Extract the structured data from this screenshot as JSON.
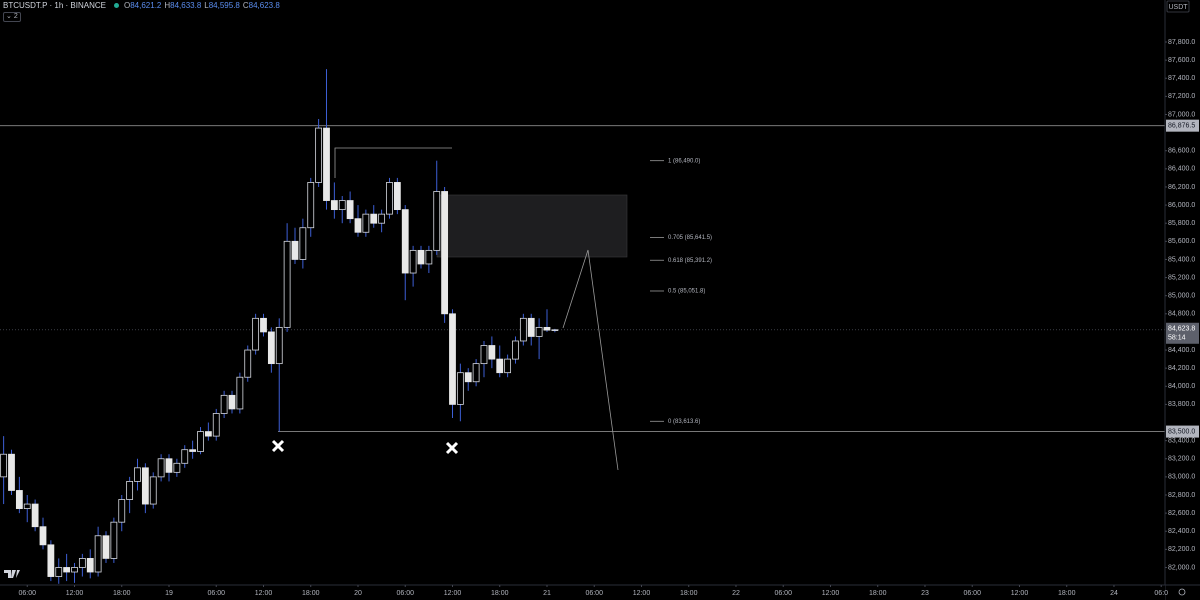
{
  "chart_data": {
    "type": "candlestick",
    "header": {
      "symbol": "BTCUSDT.P · 1h · BINANCE",
      "ohlc": [
        {
          "key": "O",
          "value": "84,621.2"
        },
        {
          "key": "H",
          "value": "84,633.8"
        },
        {
          "key": "L",
          "value": "84,595.8"
        },
        {
          "key": "C",
          "value": "84,623.8"
        }
      ],
      "badge": "2"
    },
    "currency": "USDT",
    "colors": {
      "up_fill": "#000000",
      "up_stroke": "#d6d9e0",
      "down_fill": "#e8e8e8",
      "wick": "#3d5fd6"
    },
    "x": [
      -21,
      -20,
      -19,
      -18,
      -17,
      -16,
      -15,
      -14,
      -13,
      -12,
      -11,
      -10,
      -9,
      -8,
      -7,
      -6,
      -5,
      -4,
      -3,
      -2,
      -1,
      0,
      1,
      2,
      3,
      4,
      5,
      6,
      7,
      8,
      9,
      10,
      11,
      12,
      13,
      14,
      15,
      16,
      17,
      18,
      19,
      20,
      21,
      22,
      23,
      24,
      25,
      26,
      27,
      28,
      29,
      30,
      31,
      32,
      33,
      34,
      35,
      36,
      37,
      38,
      39,
      40,
      41,
      42,
      43,
      44,
      45,
      46,
      47,
      48,
      49
    ],
    "open": [
      83000,
      83250,
      82850,
      82650,
      82700,
      82450,
      82250,
      81900,
      82000,
      81950,
      82000,
      82100,
      81950,
      82350,
      82100,
      82500,
      82750,
      82950,
      83100,
      82700,
      83000,
      83200,
      83050,
      83150,
      83300,
      83280,
      83500,
      83450,
      83700,
      83900,
      83750,
      84100,
      84400,
      84750,
      84600,
      84250,
      84650,
      85600,
      85400,
      85750,
      86250,
      86850,
      86050,
      85950,
      86050,
      85850,
      85700,
      85900,
      85800,
      85900,
      86250,
      85950,
      85250,
      85500,
      85350,
      85500,
      86150,
      84800,
      83800,
      84150,
      84050,
      84250,
      84450,
      84300,
      84150,
      84300,
      84500,
      84750,
      84550,
      84650,
      84621.2
    ],
    "high": [
      83450,
      83300,
      83000,
      82800,
      82750,
      82550,
      82300,
      82100,
      82150,
      82050,
      82150,
      82200,
      82450,
      82400,
      82550,
      82800,
      83000,
      83200,
      83150,
      83050,
      83250,
      83250,
      83200,
      83350,
      83400,
      83550,
      83600,
      83750,
      83950,
      83950,
      84150,
      84450,
      84800,
      84800,
      84650,
      84750,
      85800,
      85750,
      85850,
      86300,
      86950,
      87500,
      86250,
      86100,
      86150,
      86000,
      85950,
      86000,
      85950,
      86300,
      86300,
      86000,
      85550,
      85550,
      85550,
      86490,
      86200,
      84850,
      84250,
      84200,
      84300,
      84500,
      84550,
      84450,
      84350,
      84550,
      84800,
      84800,
      84750,
      84850,
      84633.8
    ],
    "low": [
      82700,
      82800,
      82600,
      82500,
      82400,
      82200,
      81850,
      81820,
      81850,
      81830,
      81900,
      81880,
      81900,
      82050,
      82050,
      82400,
      82600,
      82850,
      82600,
      82650,
      82950,
      82950,
      83000,
      83100,
      83200,
      83250,
      83400,
      83400,
      83650,
      83700,
      83700,
      84050,
      84350,
      84550,
      84150,
      83500,
      84600,
      85350,
      85300,
      85650,
      86200,
      85950,
      85850,
      85800,
      85800,
      85650,
      85650,
      85750,
      85700,
      85850,
      85900,
      84950,
      85100,
      85300,
      85250,
      85450,
      84700,
      83650,
      83613.6,
      83950,
      84000,
      84100,
      84200,
      84100,
      84100,
      84250,
      84450,
      84450,
      84300,
      84600,
      84595.8
    ],
    "close": [
      83250,
      82850,
      82650,
      82700,
      82450,
      82250,
      81900,
      82000,
      81950,
      82000,
      82100,
      81950,
      82350,
      82100,
      82500,
      82750,
      82950,
      83100,
      82700,
      83000,
      83200,
      83050,
      83150,
      83300,
      83280,
      83500,
      83450,
      83700,
      83900,
      83750,
      84100,
      84400,
      84750,
      84600,
      84250,
      84650,
      85600,
      85400,
      85750,
      86250,
      86850,
      86050,
      85950,
      86050,
      85850,
      85700,
      85900,
      85800,
      85900,
      86250,
      85950,
      85250,
      85500,
      85350,
      85500,
      86150,
      84800,
      83800,
      84150,
      84050,
      84250,
      84450,
      84300,
      84150,
      84300,
      84500,
      84750,
      84550,
      84650,
      84620,
      84623.8
    ],
    "xlim": [
      -21.46,
      126.48
    ],
    "ylim": [
      81806.6,
      88263.6
    ],
    "xticks": [
      {
        "value": -18,
        "label": "06:00"
      },
      {
        "value": -12,
        "label": "12:00"
      },
      {
        "value": -6,
        "label": "18:00"
      },
      {
        "value": 0,
        "label": "19"
      },
      {
        "value": 6,
        "label": "06:00"
      },
      {
        "value": 12,
        "label": "12:00"
      },
      {
        "value": 18,
        "label": "18:00"
      },
      {
        "value": 24,
        "label": "20"
      },
      {
        "value": 30,
        "label": "06:00"
      },
      {
        "value": 36,
        "label": "12:00"
      },
      {
        "value": 42,
        "label": "18:00"
      },
      {
        "value": 48,
        "label": "21"
      },
      {
        "value": 54,
        "label": "06:00"
      },
      {
        "value": 60,
        "label": "12:00"
      },
      {
        "value": 66,
        "label": "18:00"
      },
      {
        "value": 72,
        "label": "22"
      },
      {
        "value": 78,
        "label": "06:00"
      },
      {
        "value": 84,
        "label": "12:00"
      },
      {
        "value": 90,
        "label": "18:00"
      },
      {
        "value": 96,
        "label": "23"
      },
      {
        "value": 102,
        "label": "06:00"
      },
      {
        "value": 108,
        "label": "12:00"
      },
      {
        "value": 114,
        "label": "18:00"
      },
      {
        "value": 120,
        "label": "24"
      },
      {
        "value": 126,
        "label": "06:0"
      }
    ],
    "yticks": [
      {
        "value": 82000,
        "label": "82,000.0"
      },
      {
        "value": 82200,
        "label": "82,200.0"
      },
      {
        "value": 82400,
        "label": "82,400.0"
      },
      {
        "value": 82600,
        "label": "82,600.0"
      },
      {
        "value": 82800,
        "label": "82,800.0"
      },
      {
        "value": 83000,
        "label": "83,000.0"
      },
      {
        "value": 83200,
        "label": "83,200.0"
      },
      {
        "value": 83400,
        "label": "83,400.0"
      },
      {
        "value": 83800,
        "label": "83,800.0"
      },
      {
        "value": 84000,
        "label": "84,000.0"
      },
      {
        "value": 84200,
        "label": "84,200.0"
      },
      {
        "value": 84400,
        "label": "84,400.0"
      },
      {
        "value": 84800,
        "label": "84,800.0"
      },
      {
        "value": 85000,
        "label": "85,000.0"
      },
      {
        "value": 85200,
        "label": "85,200.0"
      },
      {
        "value": 85400,
        "label": "85,400.0"
      },
      {
        "value": 85600,
        "label": "85,600.0"
      },
      {
        "value": 85800,
        "label": "85,800.0"
      },
      {
        "value": 86000,
        "label": "86,000.0"
      },
      {
        "value": 86200,
        "label": "86,200.0"
      },
      {
        "value": 86400,
        "label": "86,400.0"
      },
      {
        "value": 86600,
        "label": "86,600.0"
      },
      {
        "value": 87000,
        "label": "87,000.0"
      },
      {
        "value": 87200,
        "label": "87,200.0"
      },
      {
        "value": 87400,
        "label": "87,400.0"
      },
      {
        "value": 87600,
        "label": "87,600.0"
      },
      {
        "value": 87800,
        "label": "87,800.0"
      }
    ],
    "price_lines": [
      {
        "value": 86876.5,
        "label": "86,876.5"
      },
      {
        "value": 83500.0,
        "label": "83,500.0"
      }
    ],
    "last_price": {
      "value": 84623.8,
      "label": "84,623.8",
      "countdown": "58:14"
    },
    "fib_levels": [
      {
        "value": 86490.0,
        "label": "1 (86,490.0)"
      },
      {
        "value": 85641.5,
        "label": "0.705 (85,641.5)"
      },
      {
        "value": 85391.2,
        "label": "0.618 (85,391.2)"
      },
      {
        "value": 85051.8,
        "label": "0.5 (85,051.8)"
      },
      {
        "value": 83613.6,
        "label": "0 (83,613.6)"
      }
    ]
  }
}
